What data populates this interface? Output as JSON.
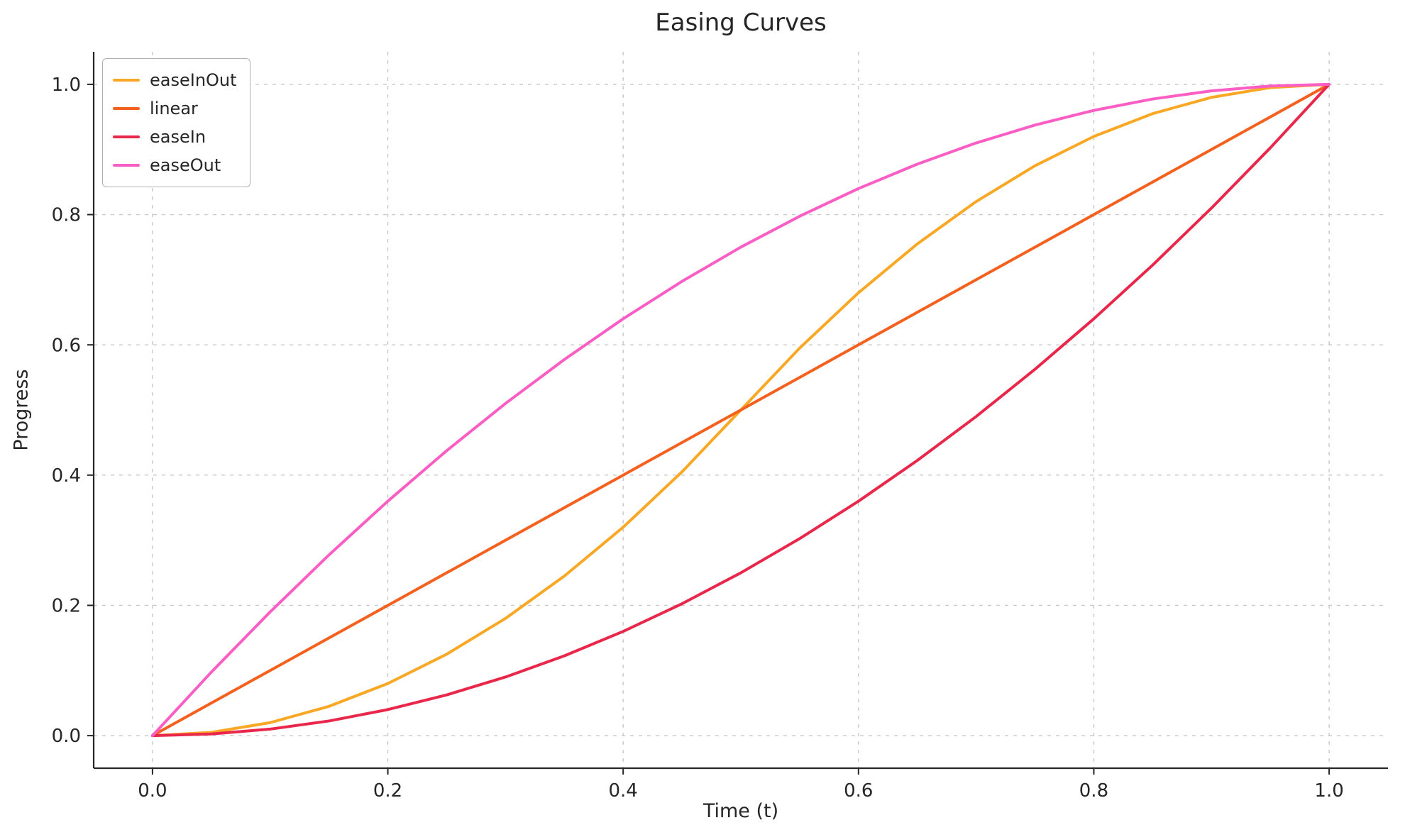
{
  "chart_data": {
    "type": "line",
    "title": "Easing Curves",
    "xlabel": "Time (t)",
    "ylabel": "Progress",
    "xlim": [
      -0.05,
      1.05
    ],
    "ylim": [
      -0.05,
      1.05
    ],
    "grid": true,
    "legend_position": "upper left",
    "xticks": [
      0.0,
      0.2,
      0.4,
      0.6,
      0.8,
      1.0
    ],
    "xtick_labels": [
      "0.0",
      "0.2",
      "0.4",
      "0.6",
      "0.8",
      "1.0"
    ],
    "yticks": [
      0.0,
      0.2,
      0.4,
      0.6,
      0.8,
      1.0
    ],
    "ytick_labels": [
      "0.0",
      "0.2",
      "0.4",
      "0.6",
      "0.8",
      "1.0"
    ],
    "x": [
      0,
      0.05,
      0.1,
      0.15,
      0.2,
      0.25,
      0.3,
      0.35,
      0.4,
      0.45,
      0.5,
      0.55,
      0.6,
      0.65,
      0.7,
      0.75,
      0.8,
      0.85,
      0.9,
      0.95,
      1
    ],
    "series": [
      {
        "name": "easeInOut",
        "color": "#F9A825",
        "values": [
          0,
          0.005,
          0.02,
          0.045,
          0.08,
          0.125,
          0.18,
          0.245,
          0.32,
          0.405,
          0.5,
          0.595,
          0.68,
          0.755,
          0.82,
          0.875,
          0.92,
          0.955,
          0.98,
          0.995,
          1
        ]
      },
      {
        "name": "linear",
        "color": "#F4611E",
        "values": [
          0,
          0.05,
          0.1,
          0.15,
          0.2,
          0.25,
          0.3,
          0.35,
          0.4,
          0.45,
          0.5,
          0.55,
          0.6,
          0.65,
          0.7,
          0.75,
          0.8,
          0.85,
          0.9,
          0.95,
          1
        ]
      },
      {
        "name": "easeIn",
        "color": "#E8274B",
        "values": [
          0,
          0.0025,
          0.01,
          0.0225,
          0.04,
          0.0625,
          0.09,
          0.1225,
          0.16,
          0.2025,
          0.25,
          0.3025,
          0.36,
          0.4225,
          0.49,
          0.5625,
          0.64,
          0.7225,
          0.81,
          0.9025,
          1
        ]
      },
      {
        "name": "easeOut",
        "color": "#FA5EC5",
        "values": [
          0,
          0.0975,
          0.19,
          0.2775,
          0.36,
          0.4375,
          0.51,
          0.5775,
          0.64,
          0.6975,
          0.75,
          0.7975,
          0.84,
          0.8775,
          0.91,
          0.9375,
          0.96,
          0.9775,
          0.99,
          0.9975,
          1
        ]
      }
    ],
    "style": {
      "grid_color": "#c8c8c8",
      "spine_color": "#262626",
      "text_color": "#262626",
      "line_width": 4
    }
  }
}
